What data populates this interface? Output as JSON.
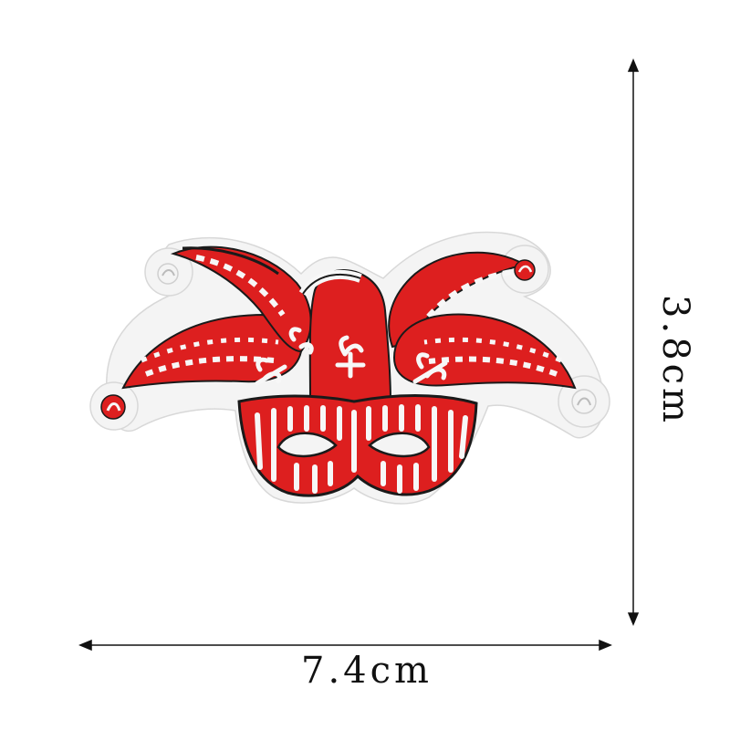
{
  "dimensions": {
    "width_label": "7.4cm",
    "height_label": "3.8cm"
  },
  "patch": {
    "subject": "jester-mask-embroidered-patch",
    "colors": {
      "red": "#dd1f1f",
      "white": "#f7f7f7",
      "outline": "#1a1a1a",
      "background": "#ffffff"
    }
  }
}
